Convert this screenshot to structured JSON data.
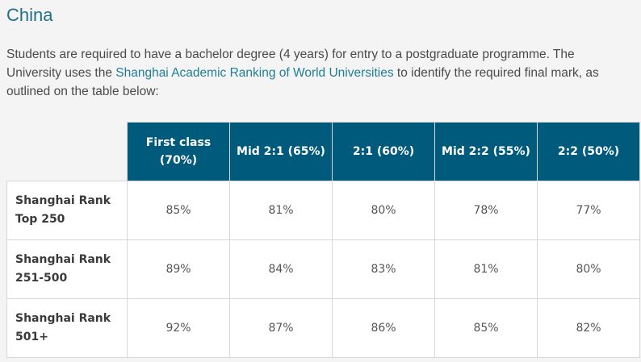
{
  "page": {
    "title": "China",
    "intro_part1": "Students are required to have a bachelor degree (4 years) for entry to a postgraduate programme. The University uses the ",
    "intro_link": "Shanghai Academic Ranking of World Universities",
    "intro_part2": " to identify the required final mark, as outlined on the table below:",
    "link_color": "#1f7e97",
    "header_color": "#005a7c"
  },
  "table": {
    "columns": [
      {
        "line1": "First class",
        "line2": "(70%)"
      },
      {
        "line1": "Mid 2:1 (65%)",
        "line2": ""
      },
      {
        "line1": "2:1 (60%)",
        "line2": ""
      },
      {
        "line1": "Mid 2:2 (55%)",
        "line2": ""
      },
      {
        "line1": "2:2 (50%)",
        "line2": ""
      }
    ],
    "rows": [
      {
        "label1": "Shanghai Rank",
        "label2": "Top 250",
        "values": [
          "85%",
          "81%",
          "80%",
          "78%",
          "77%"
        ]
      },
      {
        "label1": "Shanghai Rank",
        "label2": "251-500",
        "values": [
          "89%",
          "84%",
          "83%",
          "81%",
          "80%"
        ]
      },
      {
        "label1": "Shanghai Rank",
        "label2": "501+",
        "values": [
          "92%",
          "87%",
          "86%",
          "85%",
          "82%"
        ]
      }
    ]
  }
}
